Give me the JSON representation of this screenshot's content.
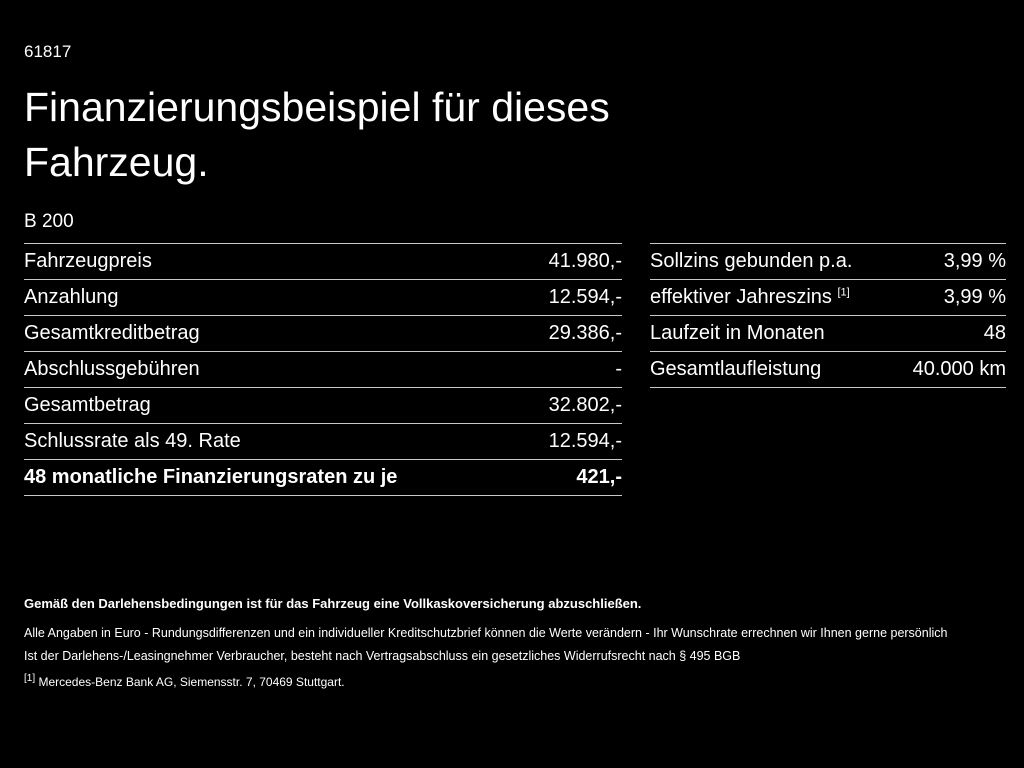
{
  "colors": {
    "background": "#000000",
    "text": "#ffffff",
    "divider": "#c8c8c8"
  },
  "header": {
    "doc_number": "61817",
    "title": "Finanzierungsbeispiel für dieses Fahrzeug.",
    "model": "B 200"
  },
  "finance_table": {
    "rows": [
      {
        "label": "Fahrzeugpreis",
        "value": "41.980,-"
      },
      {
        "label": "Anzahlung",
        "value": "12.594,-"
      },
      {
        "label": "Gesamtkreditbetrag",
        "value": "29.386,-"
      },
      {
        "label": "Abschlussgebühren",
        "value": "-"
      },
      {
        "label": "Gesamtbetrag",
        "value": "32.802,-"
      },
      {
        "label": "Schlussrate als 49. Rate",
        "value": "12.594,-"
      },
      {
        "label": "48 monatliche Finanzierungsraten zu je",
        "value": "421,-"
      }
    ]
  },
  "conditions_table": {
    "rows": [
      {
        "label": "Sollzins gebunden p.a.",
        "value": "3,99 %"
      },
      {
        "label": "effektiver Jahreszins",
        "footnote_marker": "[1]",
        "value": "3,99 %"
      },
      {
        "label": "Laufzeit in Monaten",
        "value": "48"
      },
      {
        "label": "Gesamtlaufleistung",
        "value": "40.000 km"
      }
    ]
  },
  "footer": {
    "insurance_note": "Gemäß den Darlehensbedingungen ist für das Fahrzeug eine Vollkaskoversicherung abzuschließen.",
    "note_line1": "Alle Angaben in Euro - Rundungsdifferenzen und ein individueller Kreditschutzbrief können die Werte verändern - Ihr Wunschrate errechnen wir Ihnen gerne persönlich",
    "note_line2": "Ist der Darlehens-/Leasingnehmer Verbraucher, besteht nach Vertragsabschluss ein gesetzliches Widerrufsrecht nach § 495 BGB",
    "footnote_marker": "[1]",
    "footnote_text": "Mercedes-Benz Bank AG, Siemensstr. 7, 70469 Stuttgart."
  }
}
